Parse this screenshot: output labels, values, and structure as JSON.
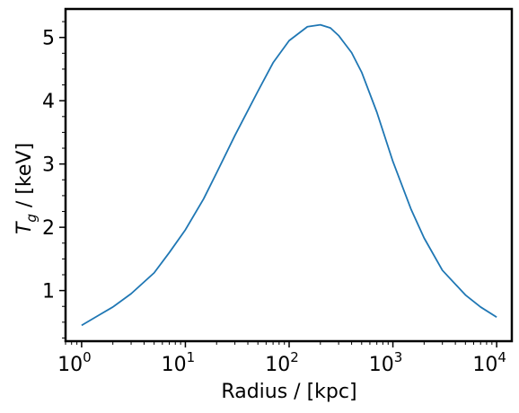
{
  "chart_data": {
    "type": "line",
    "xlabel": "Radius / [kpc]",
    "ylabel_symbol": "T",
    "ylabel_subscript": "g",
    "ylabel_units": " / [keV]",
    "xscale": "log",
    "xlim": [
      0.7,
      14000
    ],
    "ylim": [
      0.2,
      5.45
    ],
    "x_ticks": [
      {
        "value": 1,
        "base": "10",
        "exp": "0"
      },
      {
        "value": 10,
        "base": "10",
        "exp": "1"
      },
      {
        "value": 100,
        "base": "10",
        "exp": "2"
      },
      {
        "value": 1000,
        "base": "10",
        "exp": "3"
      },
      {
        "value": 10000,
        "base": "10",
        "exp": "4"
      }
    ],
    "y_ticks": [
      {
        "value": 1,
        "label": "1"
      },
      {
        "value": 2,
        "label": "2"
      },
      {
        "value": 3,
        "label": "3"
      },
      {
        "value": 4,
        "label": "4"
      },
      {
        "value": 5,
        "label": "5"
      }
    ],
    "series": [
      {
        "color": "#1f77b4",
        "x": [
          1,
          1.5,
          2,
          3,
          5,
          7,
          10,
          15,
          20,
          30,
          50,
          70,
          100,
          150,
          200,
          250,
          300,
          400,
          500,
          700,
          1000,
          1500,
          2000,
          3000,
          5000,
          7000,
          10000
        ],
        "y": [
          0.45,
          0.62,
          0.74,
          0.95,
          1.28,
          1.6,
          1.96,
          2.45,
          2.86,
          3.45,
          4.15,
          4.6,
          4.95,
          5.17,
          5.2,
          5.15,
          5.03,
          4.76,
          4.45,
          3.82,
          3.04,
          2.28,
          1.83,
          1.32,
          0.93,
          0.74,
          0.58
        ]
      }
    ]
  }
}
